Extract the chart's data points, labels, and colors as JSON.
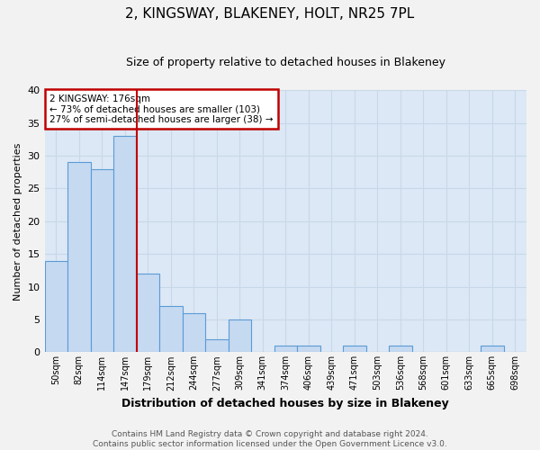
{
  "title": "2, KINGSWAY, BLAKENEY, HOLT, NR25 7PL",
  "subtitle": "Size of property relative to detached houses in Blakeney",
  "xlabel": "Distribution of detached houses by size in Blakeney",
  "ylabel": "Number of detached properties",
  "footer_line1": "Contains HM Land Registry data © Crown copyright and database right 2024.",
  "footer_line2": "Contains public sector information licensed under the Open Government Licence v3.0.",
  "categories": [
    "50sqm",
    "82sqm",
    "114sqm",
    "147sqm",
    "179sqm",
    "212sqm",
    "244sqm",
    "277sqm",
    "309sqm",
    "341sqm",
    "374sqm",
    "406sqm",
    "439sqm",
    "471sqm",
    "503sqm",
    "536sqm",
    "568sqm",
    "601sqm",
    "633sqm",
    "665sqm",
    "698sqm"
  ],
  "values": [
    14,
    29,
    28,
    33,
    12,
    7,
    6,
    2,
    5,
    0,
    1,
    1,
    0,
    1,
    0,
    1,
    0,
    0,
    0,
    1,
    0
  ],
  "bar_color": "#c5d9f1",
  "bar_edge_color": "#5b9bd5",
  "property_line_color": "#c00000",
  "annotation_line1": "2 KINGSWAY: 176sqm",
  "annotation_line2": "← 73% of detached houses are smaller (103)",
  "annotation_line3": "27% of semi-detached houses are larger (38) →",
  "annotation_box_color": "#c00000",
  "ylim": [
    0,
    40
  ],
  "yticks": [
    0,
    5,
    10,
    15,
    20,
    25,
    30,
    35,
    40
  ],
  "grid_color": "#c8d8e8",
  "background_color": "#dce8f5",
  "fig_bg_color": "#f2f2f2",
  "title_fontsize": 11,
  "subtitle_fontsize": 9,
  "ylabel_fontsize": 8,
  "xlabel_fontsize": 9,
  "footer_fontsize": 6.5,
  "tick_fontsize": 7
}
